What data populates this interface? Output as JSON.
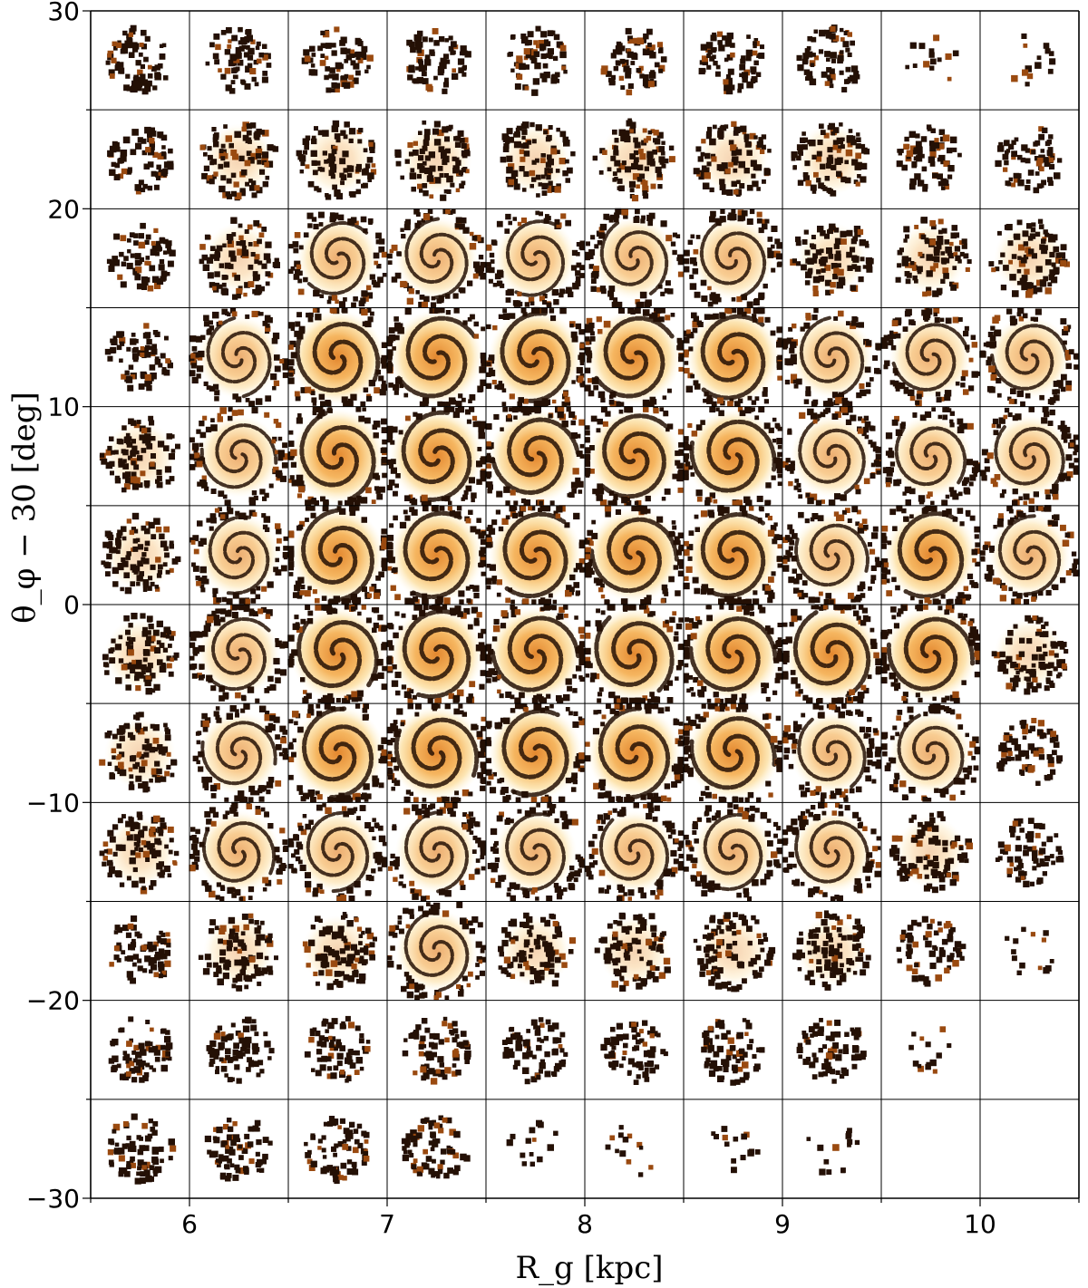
{
  "chart_data": {
    "type": "heatmap",
    "title": "",
    "xlabel": "R_g [kpc]",
    "ylabel": "θ_φ − 30 [deg]",
    "xlim": [
      5.5,
      10.5
    ],
    "ylim": [
      -30,
      30
    ],
    "xticks": [
      6,
      7,
      8,
      9,
      10
    ],
    "yticks": [
      30,
      20,
      10,
      0,
      -10,
      -20,
      -30
    ],
    "xtick_labels": [
      "6",
      "7",
      "8",
      "9",
      "10"
    ],
    "ytick_labels": [
      "30",
      "20",
      "10",
      "0",
      "−10",
      "−20",
      "−30"
    ],
    "grid": {
      "columns": 10,
      "rows": 12,
      "column_width_kpc": 0.5,
      "row_height_deg": 5
    },
    "colormap": [
      "#ffffff",
      "#fde9a8",
      "#f7b548",
      "#d97a1a",
      "#9a4a10",
      "#241005"
    ],
    "panel_occupancy": [
      [
        2,
        2,
        2,
        2,
        2,
        2,
        2,
        2,
        1,
        1
      ],
      [
        2,
        3,
        3,
        3,
        3,
        3,
        3,
        3,
        2,
        2
      ],
      [
        2,
        3,
        4,
        4,
        4,
        4,
        4,
        3,
        3,
        3
      ],
      [
        2,
        4,
        5,
        5,
        5,
        5,
        5,
        4,
        4,
        4
      ],
      [
        3,
        4,
        5,
        5,
        5,
        5,
        5,
        4,
        4,
        4
      ],
      [
        3,
        4,
        5,
        5,
        5,
        5,
        5,
        4,
        5,
        4
      ],
      [
        3,
        4,
        5,
        5,
        5,
        5,
        5,
        5,
        5,
        3
      ],
      [
        3,
        4,
        5,
        5,
        5,
        5,
        5,
        4,
        4,
        2
      ],
      [
        3,
        4,
        4,
        4,
        4,
        4,
        4,
        4,
        3,
        2
      ],
      [
        2,
        3,
        3,
        4,
        3,
        3,
        3,
        3,
        2,
        1
      ],
      [
        2,
        2,
        2,
        2,
        2,
        2,
        2,
        2,
        1,
        0
      ],
      [
        2,
        2,
        2,
        2,
        1,
        1,
        1,
        1,
        0,
        0
      ]
    ]
  }
}
